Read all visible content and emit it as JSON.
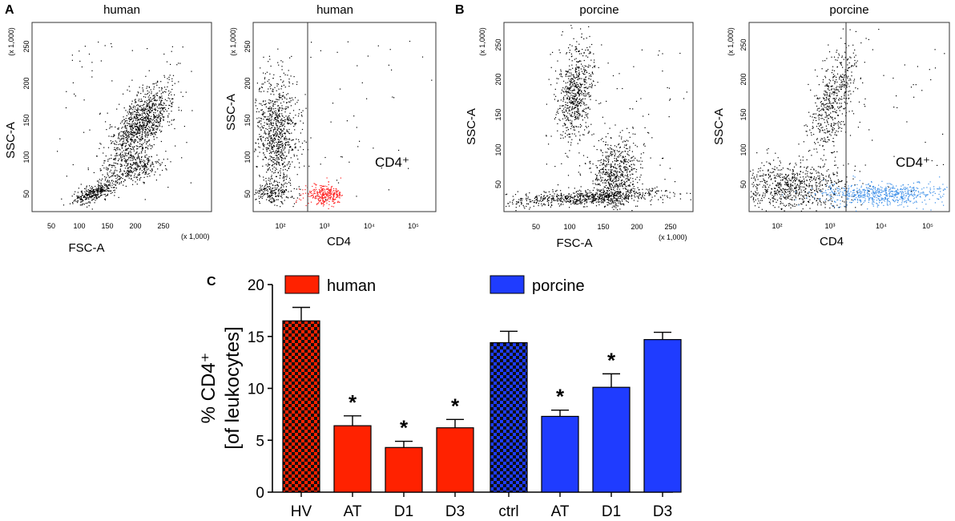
{
  "panels": {
    "A": {
      "letter": "A",
      "left_plot": {
        "title": "human",
        "xlabel": "FSC-A",
        "ylabel": "SSC-A",
        "x_ticks": [
          "50",
          "100",
          "150",
          "200",
          "250"
        ],
        "y_ticks": [
          "50",
          "100",
          "150",
          "200",
          "250"
        ],
        "x_mult": "(x 1,000)",
        "y_mult": "(x 1,000)"
      },
      "right_plot": {
        "title": "human",
        "xlabel": "CD4",
        "ylabel": "SSC-A",
        "x_ticks": [
          "10²",
          "10³",
          "10⁴",
          "10⁵"
        ],
        "y_ticks": [
          "50",
          "100",
          "150",
          "200",
          "250"
        ],
        "y_mult": "(x 1,000)",
        "gate_label": "CD4⁺",
        "gate_color": "#ff2020"
      }
    },
    "B": {
      "letter": "B",
      "left_plot": {
        "title": "porcine",
        "xlabel": "FSC-A",
        "ylabel": "SSC-A",
        "x_ticks": [
          "50",
          "100",
          "150",
          "200",
          "250"
        ],
        "y_ticks": [
          "50",
          "100",
          "150",
          "200",
          "250"
        ],
        "x_mult": "(x 1,000)",
        "y_mult": "(x 1,000)"
      },
      "right_plot": {
        "title": "porcine",
        "xlabel": "CD4",
        "ylabel": "SSC-A",
        "x_ticks": [
          "10²",
          "10³",
          "10⁴",
          "10⁵"
        ],
        "y_ticks": [
          "50",
          "100",
          "150",
          "200",
          "250"
        ],
        "y_mult": "(x 1,000)",
        "gate_label": "CD4⁺",
        "gate_color": "#3a8ee8"
      }
    },
    "C": {
      "letter": "C"
    }
  },
  "chart_data": {
    "type": "bar",
    "ylabel_line1": "% CD4⁺",
    "ylabel_line2": "[of leukocytes]",
    "ylim": [
      0,
      20
    ],
    "y_ticks": [
      "0",
      "5",
      "10",
      "15",
      "20"
    ],
    "legend": [
      {
        "name": "human",
        "color": "#ff2200"
      },
      {
        "name": "porcine",
        "color": "#1f3cff"
      }
    ],
    "groups": [
      {
        "name": "human",
        "color": "#ff2200",
        "categories": [
          "HV",
          "AT",
          "D1",
          "D3"
        ],
        "values": [
          16.5,
          6.4,
          4.3,
          6.2
        ],
        "errors": [
          1.3,
          0.95,
          0.6,
          0.8
        ],
        "significant": [
          false,
          true,
          true,
          true
        ]
      },
      {
        "name": "porcine",
        "color": "#1f3cff",
        "categories": [
          "ctrl",
          "AT",
          "D1",
          "D3"
        ],
        "values": [
          14.4,
          7.3,
          10.1,
          14.7
        ],
        "errors": [
          1.1,
          0.6,
          1.3,
          0.7
        ],
        "significant": [
          false,
          true,
          true,
          false
        ]
      }
    ],
    "star_symbol": "*"
  }
}
